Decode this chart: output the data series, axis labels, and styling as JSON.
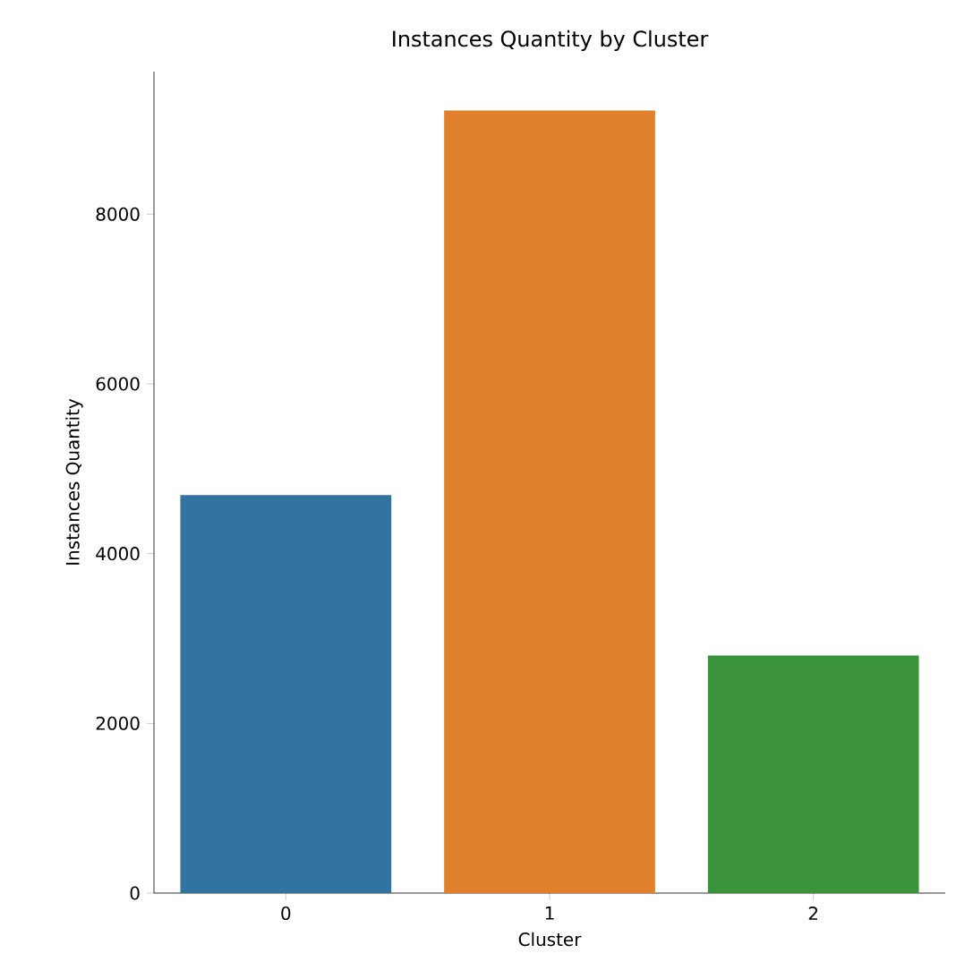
{
  "chart_data": {
    "type": "bar",
    "title": "Instances Quantity by Cluster",
    "xlabel": "Cluster",
    "ylabel": "Instances Quantity",
    "categories": [
      "0",
      "1",
      "2"
    ],
    "values": [
      4690,
      9220,
      2800
    ],
    "colors": [
      "#3274a1",
      "#e1812c",
      "#3a923a"
    ],
    "ylim": [
      0,
      9680
    ],
    "yticks": [
      0,
      2000,
      4000,
      6000,
      8000
    ],
    "grid": false
  }
}
